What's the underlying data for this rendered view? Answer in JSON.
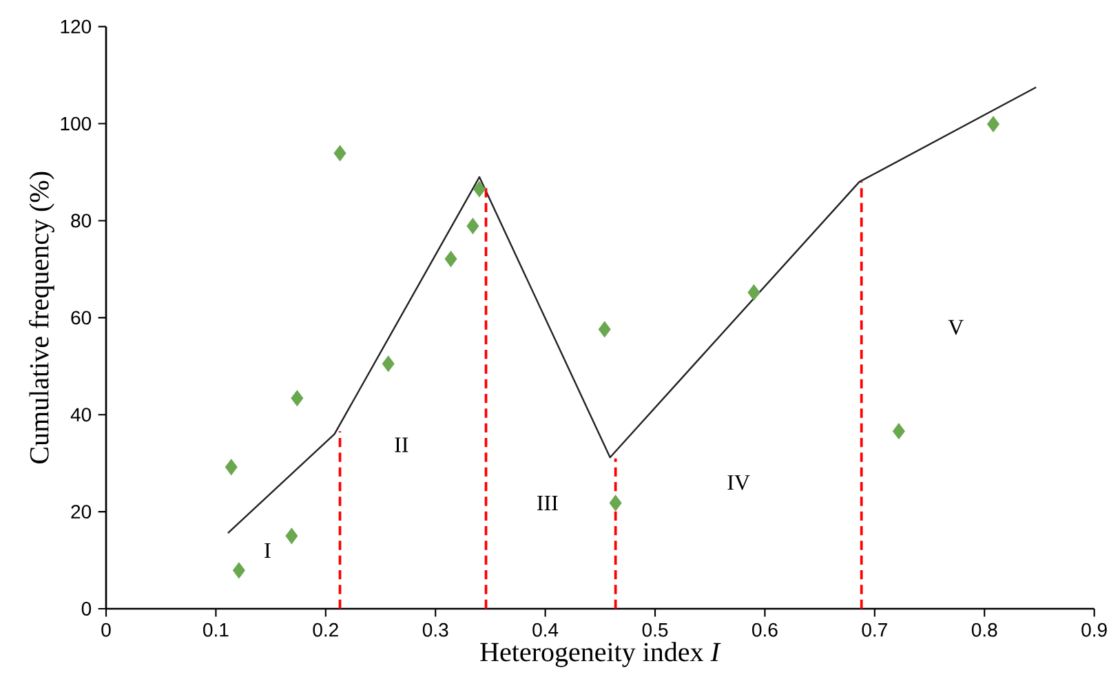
{
  "chart_data": {
    "type": "scatter",
    "xlabel": "Heterogeneity index *I*",
    "ylabel": "Cumulative frequency (%)",
    "xlim": [
      0,
      0.9
    ],
    "xticks": [
      0,
      0.1,
      0.2,
      0.3,
      0.4,
      0.5,
      0.6,
      0.7,
      0.8,
      0.9
    ],
    "ylim": [
      0,
      120
    ],
    "yticks": [
      0,
      20,
      40,
      60,
      80,
      100,
      120
    ],
    "grid": false,
    "series": [
      {
        "color": "#6aa84f",
        "marker": "diamond",
        "x": [
          0.114,
          0.121,
          0.169,
          0.174,
          0.213,
          0.257,
          0.314,
          0.334,
          0.34,
          0.454,
          0.464,
          0.59,
          0.722,
          0.808
        ],
        "values": [
          29.2,
          7.9,
          15.0,
          43.4,
          93.9,
          50.5,
          72.1,
          78.9,
          86.5,
          57.6,
          21.8,
          65.2,
          36.6,
          99.9
        ]
      },
      {
        "type": "line",
        "color": "#222222",
        "marker": "none",
        "line_style": "solid",
        "x": [
          0.111,
          0.208,
          0.34,
          0.459,
          0.686,
          0.847
        ],
        "values": [
          15.6,
          36.0,
          89.0,
          31.2,
          88.0,
          107.5
        ]
      },
      {
        "type": "line",
        "color": "#ff0000",
        "marker": "none",
        "line_style": "dashed",
        "x": [
          0.213,
          0.213
        ],
        "values": [
          0,
          36.6
        ]
      },
      {
        "type": "line",
        "color": "#ff0000",
        "marker": "none",
        "line_style": "dashed",
        "x": [
          0.346,
          0.346
        ],
        "values": [
          0,
          87.0
        ]
      },
      {
        "type": "line",
        "color": "#ff0000",
        "marker": "none",
        "line_style": "dashed",
        "x": [
          0.464,
          0.464
        ],
        "values": [
          0,
          31.0
        ]
      },
      {
        "type": "line",
        "color": "#ff0000",
        "marker": "none",
        "line_style": "dashed",
        "x": [
          0.688,
          0.688
        ],
        "values": [
          0,
          88.0
        ]
      }
    ],
    "annotations": [
      "I",
      "II",
      "III",
      "IV",
      "V"
    ]
  }
}
